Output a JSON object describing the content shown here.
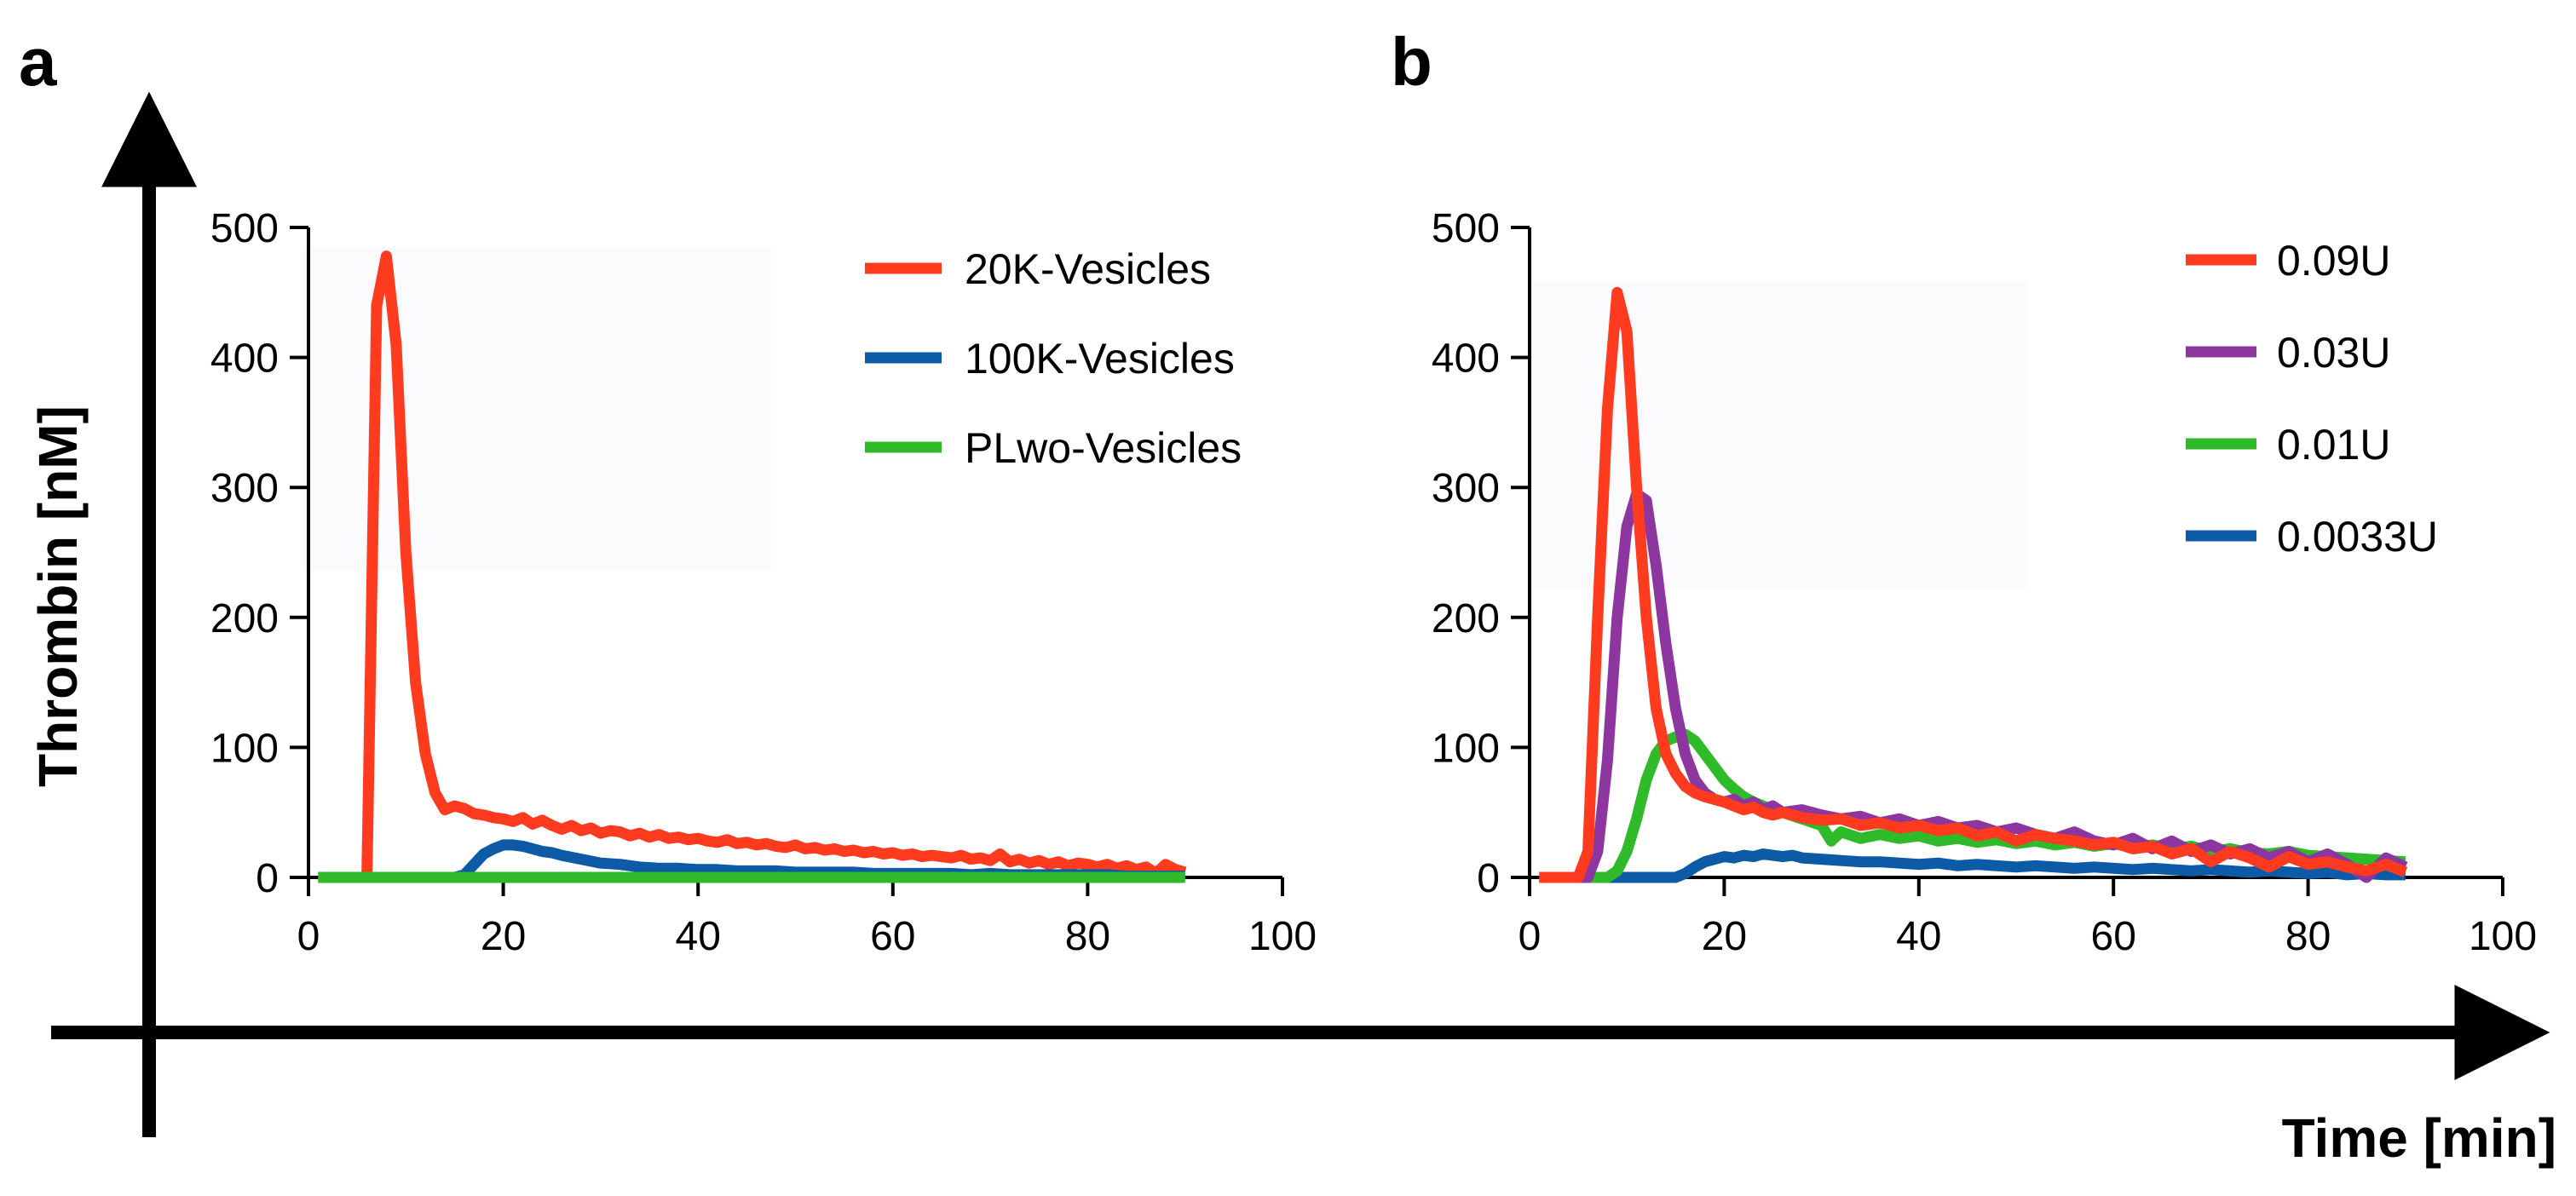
{
  "figure": {
    "y_axis_title": "Thrombin [nM]",
    "x_axis_title": "Time [min]"
  },
  "chart_data": [
    {
      "type": "line",
      "panel": "a",
      "xlim": [
        0,
        100
      ],
      "ylim": [
        0,
        500
      ],
      "x_ticks": [
        0,
        20,
        40,
        60,
        80,
        100
      ],
      "y_ticks": [
        0,
        100,
        200,
        300,
        400,
        500
      ],
      "series": [
        {
          "name": "20K-Vesicles",
          "color": "#ff3b1f",
          "x": [
            1,
            2,
            3,
            4,
            5,
            6,
            7,
            8,
            9,
            10,
            11,
            12,
            13,
            14,
            15,
            16,
            17,
            18,
            19,
            20,
            21,
            22,
            23,
            24,
            25,
            26,
            27,
            28,
            29,
            30,
            31,
            32,
            33,
            34,
            35,
            36,
            37,
            38,
            39,
            40,
            41,
            42,
            43,
            44,
            45,
            46,
            47,
            48,
            49,
            50,
            51,
            52,
            53,
            54,
            55,
            56,
            57,
            58,
            59,
            60,
            61,
            62,
            63,
            64,
            65,
            66,
            67,
            68,
            69,
            70,
            71,
            72,
            73,
            74,
            75,
            76,
            77,
            78,
            79,
            80,
            81,
            82,
            83,
            84,
            85,
            86,
            87,
            88,
            89,
            90
          ],
          "values": [
            0,
            0,
            0,
            0,
            0,
            0,
            440,
            478,
            410,
            250,
            150,
            95,
            65,
            52,
            55,
            53,
            49,
            48,
            46,
            45,
            43,
            46,
            41,
            44,
            40,
            37,
            40,
            36,
            38,
            34,
            36,
            35,
            32,
            34,
            31,
            33,
            30,
            31,
            29,
            30,
            28,
            27,
            29,
            26,
            27,
            25,
            26,
            24,
            23,
            25,
            22,
            23,
            21,
            22,
            20,
            21,
            19,
            20,
            18,
            19,
            17,
            18,
            16,
            17,
            16,
            15,
            17,
            14,
            15,
            13,
            18,
            12,
            14,
            11,
            13,
            10,
            12,
            9,
            11,
            10,
            8,
            10,
            7,
            9,
            6,
            8,
            3,
            10,
            6,
            4
          ]
        },
        {
          "name": "100K-Vesicles",
          "color": "#0d5aa7",
          "x": [
            1,
            5,
            10,
            15,
            16,
            17,
            18,
            19,
            20,
            21,
            22,
            23,
            24,
            25,
            26,
            28,
            30,
            32,
            34,
            36,
            38,
            40,
            42,
            44,
            46,
            48,
            50,
            52,
            54,
            56,
            58,
            60,
            62,
            64,
            66,
            68,
            70,
            72,
            74,
            76,
            78,
            80,
            82,
            84,
            86,
            88,
            90
          ],
          "values": [
            0,
            0,
            0,
            0,
            2,
            10,
            18,
            22,
            25,
            25,
            24,
            22,
            20,
            19,
            17,
            14,
            11,
            10,
            8,
            7,
            7,
            6,
            6,
            5,
            5,
            5,
            4,
            4,
            4,
            4,
            3,
            3,
            3,
            3,
            3,
            2,
            3,
            2,
            2,
            2,
            2,
            2,
            2,
            1,
            1,
            1,
            1
          ]
        },
        {
          "name": "PLwo-Vesicles",
          "color": "#2fba2a",
          "x": [
            1,
            10,
            20,
            30,
            40,
            50,
            60,
            70,
            80,
            90
          ],
          "values": [
            0,
            0,
            0,
            0,
            0,
            0,
            0,
            0,
            0,
            0
          ]
        }
      ]
    },
    {
      "type": "line",
      "panel": "b",
      "xlim": [
        0,
        100
      ],
      "ylim": [
        0,
        500
      ],
      "x_ticks": [
        0,
        20,
        40,
        60,
        80,
        100
      ],
      "y_ticks": [
        0,
        100,
        200,
        300,
        400,
        500
      ],
      "series": [
        {
          "name": "0.0033U",
          "color": "#0d5aa7",
          "x": [
            1,
            5,
            10,
            15,
            16,
            17,
            18,
            19,
            20,
            21,
            22,
            23,
            24,
            25,
            26,
            27,
            28,
            30,
            32,
            34,
            36,
            38,
            40,
            42,
            44,
            46,
            48,
            50,
            52,
            54,
            56,
            58,
            60,
            62,
            64,
            66,
            68,
            70,
            72,
            74,
            76,
            78,
            80,
            82,
            84,
            86,
            88,
            90
          ],
          "values": [
            0,
            0,
            0,
            0,
            3,
            8,
            12,
            14,
            16,
            15,
            17,
            16,
            18,
            17,
            16,
            17,
            15,
            14,
            13,
            12,
            12,
            11,
            10,
            11,
            9,
            10,
            9,
            8,
            9,
            8,
            7,
            8,
            7,
            6,
            7,
            6,
            5,
            6,
            5,
            4,
            5,
            4,
            3,
            4,
            2,
            3,
            2,
            2
          ]
        },
        {
          "name": "0.01U",
          "color": "#2fba2a",
          "x": [
            1,
            5,
            8,
            9,
            10,
            11,
            12,
            13,
            14,
            15,
            16,
            17,
            18,
            19,
            20,
            21,
            22,
            23,
            24,
            25,
            26,
            28,
            30,
            31,
            32,
            34,
            36,
            38,
            40,
            42,
            44,
            46,
            48,
            50,
            52,
            54,
            56,
            58,
            60,
            62,
            64,
            66,
            68,
            70,
            72,
            74,
            76,
            78,
            80,
            82,
            84,
            86,
            88,
            90
          ],
          "values": [
            0,
            0,
            0,
            5,
            20,
            45,
            75,
            95,
            105,
            108,
            110,
            105,
            95,
            85,
            75,
            68,
            62,
            58,
            55,
            52,
            50,
            45,
            40,
            28,
            35,
            30,
            33,
            30,
            32,
            28,
            30,
            27,
            29,
            26,
            28,
            25,
            27,
            24,
            26,
            23,
            25,
            22,
            24,
            20,
            22,
            19,
            18,
            20,
            17,
            16,
            15,
            14,
            13,
            12
          ]
        },
        {
          "name": "0.03U",
          "color": "#8e36a0",
          "x": [
            1,
            5,
            6,
            7,
            8,
            9,
            10,
            11,
            12,
            13,
            14,
            15,
            16,
            17,
            18,
            19,
            20,
            21,
            22,
            23,
            24,
            25,
            26,
            28,
            30,
            32,
            34,
            36,
            38,
            40,
            42,
            44,
            46,
            48,
            50,
            52,
            54,
            56,
            58,
            60,
            62,
            64,
            66,
            68,
            70,
            72,
            74,
            76,
            78,
            80,
            82,
            84,
            86,
            88,
            90
          ],
          "values": [
            0,
            0,
            0,
            20,
            90,
            200,
            270,
            295,
            290,
            240,
            180,
            130,
            95,
            75,
            65,
            60,
            58,
            60,
            55,
            58,
            52,
            55,
            50,
            52,
            48,
            45,
            47,
            42,
            45,
            40,
            43,
            38,
            40,
            35,
            38,
            33,
            30,
            35,
            28,
            25,
            30,
            22,
            28,
            20,
            25,
            18,
            22,
            15,
            20,
            12,
            18,
            10,
            0,
            15,
            8
          ]
        },
        {
          "name": "0.09U",
          "color": "#ff3b1f",
          "x": [
            1,
            5,
            6,
            7,
            8,
            9,
            10,
            11,
            12,
            13,
            14,
            15,
            16,
            17,
            18,
            19,
            20,
            21,
            22,
            23,
            24,
            25,
            26,
            28,
            30,
            32,
            34,
            36,
            38,
            40,
            42,
            44,
            46,
            48,
            50,
            52,
            54,
            56,
            58,
            60,
            62,
            64,
            66,
            68,
            70,
            72,
            74,
            76,
            78,
            80,
            82,
            84,
            86,
            88,
            90
          ],
          "values": [
            0,
            0,
            20,
            200,
            360,
            450,
            420,
            300,
            200,
            130,
            95,
            80,
            70,
            65,
            62,
            60,
            58,
            55,
            52,
            54,
            50,
            48,
            50,
            46,
            44,
            45,
            40,
            42,
            38,
            40,
            36,
            38,
            32,
            35,
            28,
            33,
            30,
            28,
            25,
            27,
            22,
            24,
            18,
            22,
            12,
            20,
            15,
            8,
            16,
            10,
            12,
            8,
            5,
            10,
            4
          ]
        }
      ]
    }
  ],
  "legends": [
    {
      "items": [
        "20K-Vesicles",
        "100K-Vesicles",
        "PLwo-Vesicles"
      ],
      "colors": [
        "#ff3b1f",
        "#0d5aa7",
        "#2fba2a"
      ]
    },
    {
      "items": [
        "0.09U",
        "0.03U",
        "0.01U",
        "0.0033U"
      ],
      "colors": [
        "#ff3b1f",
        "#8e36a0",
        "#2fba2a",
        "#0d5aa7"
      ]
    }
  ]
}
